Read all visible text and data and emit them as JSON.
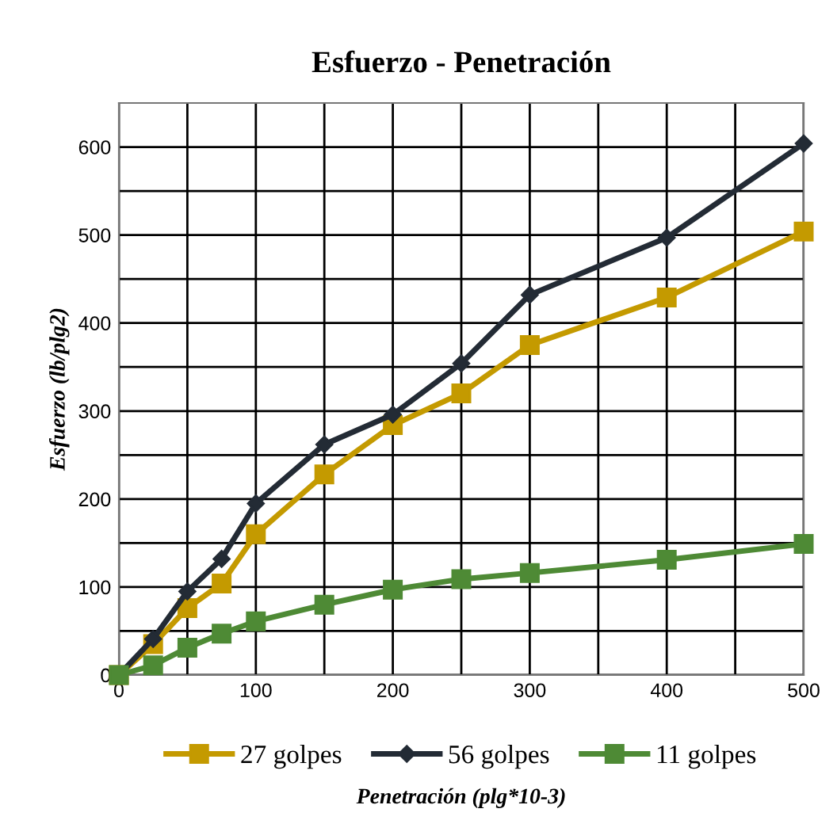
{
  "chart_data": {
    "type": "line",
    "title": "Esfuerzo - Penetración",
    "xlabel": "Penetración (plg*10-3)",
    "ylabel": "Esfuerzo (lb/plg2)",
    "x": [
      0,
      25,
      50,
      75,
      100,
      150,
      200,
      250,
      300,
      400,
      500
    ],
    "series": [
      {
        "name": "27 golpes",
        "color": "#c49a00",
        "marker": "square",
        "values": [
          0,
          35,
          76,
          104,
          160,
          228,
          284,
          320,
          375,
          429,
          504
        ]
      },
      {
        "name": "56 golpes",
        "color": "#232b35",
        "marker": "diamond",
        "values": [
          0,
          41,
          95,
          132,
          195,
          262,
          296,
          354,
          432,
          497,
          604
        ]
      },
      {
        "name": "11 golpes",
        "color": "#4e8a35",
        "marker": "square",
        "values": [
          0,
          11,
          31,
          47,
          61,
          80,
          97,
          109,
          116,
          131,
          149
        ]
      }
    ],
    "xlim": [
      0,
      500
    ],
    "xticks": [
      0,
      {
        "value": 50,
        "label": null
      },
      100,
      {
        "value": 150,
        "label": null
      },
      200,
      {
        "value": 250,
        "label": null
      },
      300,
      {
        "value": 350,
        "label": null
      },
      400,
      {
        "value": 450,
        "label": null
      },
      500
    ],
    "ylim": [
      0,
      650
    ],
    "yticks": [
      0,
      {
        "value": 50,
        "label": null
      },
      100,
      {
        "value": 150,
        "label": null
      },
      200,
      {
        "value": 250,
        "label": null
      },
      300,
      {
        "value": 350,
        "label": null
      },
      400,
      {
        "value": 450,
        "label": null
      },
      500,
      {
        "value": 550,
        "label": null
      },
      600
    ],
    "grid": true,
    "legend": "bottom",
    "line_style": "solid"
  }
}
